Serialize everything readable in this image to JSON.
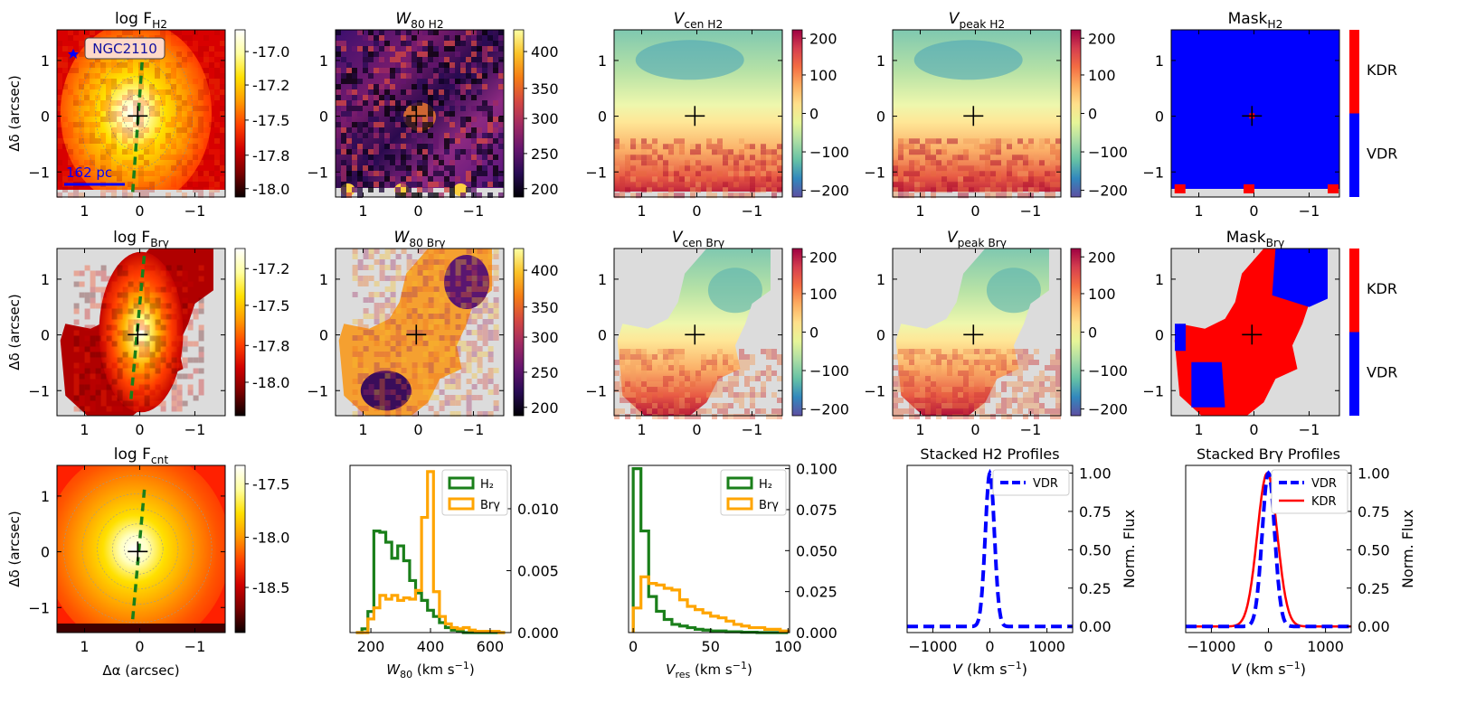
{
  "figure": {
    "target": "NGC2110",
    "scalebar_label": "162 pc"
  },
  "panel_titles": {
    "flux_h2": "log F_H2",
    "w80_h2": "W_80 H2",
    "vcen_h2": "V_cen H2",
    "vpeak_h2": "V_peak H2",
    "mask_h2": "Mask_H2",
    "flux_brg": "log F_Brγ",
    "w80_brg": "W_80 Brγ",
    "vcen_brg": "V_cen Brγ",
    "vpeak_brg": "V_peak Brγ",
    "mask_brg": "Mask_Brγ",
    "flux_cnt": "log F_cnt",
    "stacked_h2": "Stacked H2 Profiles",
    "stacked_brg": "Stacked Brγ Profiles"
  },
  "axes": {
    "map_xticks": [
      "1",
      "0",
      "−1"
    ],
    "map_yticks": [
      "1",
      "0",
      "−1"
    ],
    "map_xlabel": "Δα (arcsec)",
    "map_ylabel": "Δδ (arcsec)",
    "map_range_arcsec": [
      1.5,
      -1.55,
      -1.45,
      1.55
    ]
  },
  "colorbars": {
    "flux_h2": [
      "-17.0",
      "-17.2",
      "-17.5",
      "-17.8",
      "-18.0"
    ],
    "w80": [
      "400",
      "350",
      "300",
      "250",
      "200"
    ],
    "velocity": [
      "200",
      "100",
      "0",
      "−100",
      "−200"
    ],
    "flux_brg": [
      "-17.2",
      "-17.5",
      "-17.8",
      "-18.0"
    ],
    "flux_cnt": [
      "-17.5",
      "-18.0",
      "-18.5"
    ],
    "mask": [
      "KDR",
      "VDR"
    ]
  },
  "colors": {
    "vdr": "#0000ff",
    "kdr": "#ff0000",
    "h2": "#1a7f1a",
    "brg": "#ffa500",
    "nodata": "#dcdcdc"
  },
  "chart_data": [
    {
      "type": "histogram",
      "id": "w80_hist",
      "xlabel": "W_80 (km s^-1)",
      "xlim": [
        130,
        670
      ],
      "ylim": [
        0,
        0.0135
      ],
      "xticks": [
        "200",
        "400",
        "600"
      ],
      "yticks": [
        "0.000",
        "0.005",
        "0.010"
      ],
      "bin_edges": [
        150,
        170,
        190,
        210,
        230,
        250,
        270,
        290,
        310,
        330,
        350,
        370,
        390,
        410,
        430,
        450,
        470,
        490,
        510,
        530,
        550,
        570,
        590,
        610,
        630,
        650
      ],
      "series": [
        {
          "name": "H₂",
          "values": [
            0.0,
            0.0003,
            0.0017,
            0.0082,
            0.0081,
            0.0073,
            0.006,
            0.007,
            0.0058,
            0.0042,
            0.0032,
            0.0026,
            0.0018,
            0.0013,
            0.0008,
            0.0004,
            0.0002,
            0.0001,
            0,
            0,
            0,
            0,
            0,
            0,
            0
          ]
        },
        {
          "name": "Brγ",
          "values": [
            0,
            0,
            0.0011,
            0.002,
            0.003,
            0.0027,
            0.003,
            0.0026,
            0.0028,
            0.0027,
            0.0034,
            0.0093,
            0.013,
            0.0033,
            0.0013,
            0.0007,
            0.0004,
            0.0003,
            0.0004,
            0.0002,
            0.0001,
            0.0001,
            0.0001,
            0.0001,
            0
          ]
        }
      ]
    },
    {
      "type": "histogram",
      "id": "vres_hist",
      "xlabel": "V_res (km s^-1)",
      "xlim": [
        -3,
        101
      ],
      "ylim": [
        0,
        0.102
      ],
      "xticks": [
        "0",
        "50",
        "100"
      ],
      "yticks": [
        "0.000",
        "0.025",
        "0.050",
        "0.075",
        "0.100"
      ],
      "bin_edges": [
        0,
        5,
        10,
        15,
        20,
        25,
        30,
        35,
        40,
        45,
        50,
        55,
        60,
        65,
        70,
        75,
        80,
        85,
        90,
        95,
        100
      ],
      "series": [
        {
          "name": "H₂",
          "values": [
            0.1,
            0.062,
            0.022,
            0.013,
            0.008,
            0.005,
            0.004,
            0.003,
            0.002,
            0.0015,
            0.001,
            0.001,
            0.0005,
            0.0005,
            0.0002,
            0.0002,
            0,
            0,
            0,
            0
          ]
        },
        {
          "name": "Brγ",
          "values": [
            0.015,
            0.034,
            0.03,
            0.029,
            0.027,
            0.026,
            0.02,
            0.016,
            0.014,
            0.012,
            0.01,
            0.009,
            0.007,
            0.005,
            0.004,
            0.003,
            0.003,
            0.002,
            0.002,
            0.001
          ]
        }
      ]
    },
    {
      "type": "line",
      "id": "stacked_h2",
      "title": "Stacked H2 Profiles",
      "xlabel": "V (km s^-1)",
      "ylabel": "Norm. Flux",
      "xlim": [
        -1450,
        1450
      ],
      "ylim": [
        -0.04,
        1.05
      ],
      "xticks": [
        "-1000",
        "0",
        "1000"
      ],
      "yticks": [
        "0.00",
        "0.25",
        "0.50",
        "0.75",
        "1.00"
      ],
      "series": [
        {
          "name": "VDR",
          "style": "dashed",
          "center": 0,
          "sigma": 80
        }
      ]
    },
    {
      "type": "line",
      "id": "stacked_brg",
      "title": "Stacked Brγ Profiles",
      "xlabel": "V (km s^-1)",
      "ylabel": "Norm. Flux",
      "xlim": [
        -1450,
        1450
      ],
      "ylim": [
        -0.04,
        1.05
      ],
      "xticks": [
        "-1000",
        "0",
        "1000"
      ],
      "yticks": [
        "0.00",
        "0.25",
        "0.50",
        "0.75",
        "1.00"
      ],
      "series": [
        {
          "name": "VDR",
          "style": "dashed",
          "center": 0,
          "sigma": 110
        },
        {
          "name": "KDR",
          "style": "solid",
          "center": -20,
          "sigma": 175
        }
      ]
    }
  ]
}
